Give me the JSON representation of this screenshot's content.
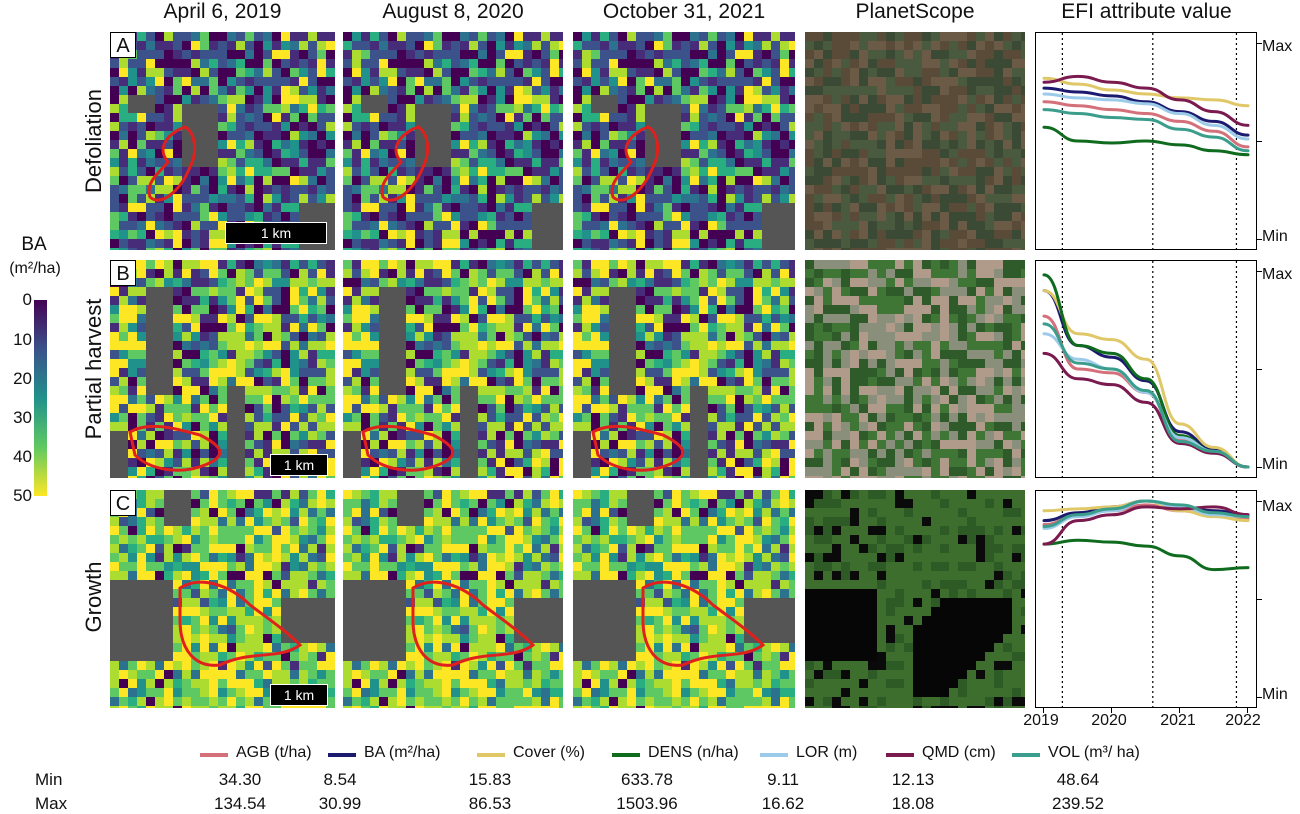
{
  "columns": [
    "April 6, 2019",
    "August 8, 2020",
    "October 31, 2021",
    "PlanetScope",
    "EFI attribute value"
  ],
  "rows": [
    {
      "letter": "A",
      "label": "Defoliation",
      "scale": "1 km"
    },
    {
      "letter": "B",
      "label": "Partial harvest",
      "scale": "1 km"
    },
    {
      "letter": "C",
      "label": "Growth",
      "scale": "1 km"
    }
  ],
  "colorbar": {
    "title": "BA",
    "unit": "(m²/ha)",
    "ticks": [
      "0",
      "10",
      "20",
      "30",
      "40",
      "50"
    ],
    "colors": [
      "#440154",
      "#3b528b",
      "#21918c",
      "#5ec962",
      "#fde725"
    ]
  },
  "chart_data": [
    {
      "type": "line",
      "panel": "A",
      "ylabels": [
        "Max",
        "Min"
      ],
      "x": [
        2019,
        2019.5,
        2020,
        2020.5,
        2021,
        2021.5,
        2022
      ],
      "vlines": [
        2019.27,
        2020.6,
        2021.83
      ],
      "xticks": [
        "2019",
        "2020",
        "2021",
        "2022"
      ],
      "ylim": [
        0,
        1
      ],
      "series": [
        {
          "name": "AGB",
          "color": "#d4707a",
          "values": [
            0.7,
            0.68,
            0.66,
            0.64,
            0.6,
            0.55,
            0.47
          ]
        },
        {
          "name": "BA",
          "color": "#1c1a6e",
          "values": [
            0.77,
            0.75,
            0.73,
            0.7,
            0.65,
            0.6,
            0.53
          ]
        },
        {
          "name": "Cover",
          "color": "#e0c869",
          "values": [
            0.82,
            0.79,
            0.76,
            0.74,
            0.72,
            0.71,
            0.68
          ]
        },
        {
          "name": "DENS",
          "color": "#0f6b1e",
          "values": [
            0.57,
            0.5,
            0.49,
            0.5,
            0.48,
            0.45,
            0.43
          ]
        },
        {
          "name": "LOR",
          "color": "#9ccbea",
          "values": [
            0.74,
            0.72,
            0.71,
            0.69,
            0.64,
            0.58,
            0.51
          ]
        },
        {
          "name": "QMD",
          "color": "#7a1a4e",
          "values": [
            0.8,
            0.83,
            0.8,
            0.77,
            0.71,
            0.65,
            0.58
          ]
        },
        {
          "name": "VOL",
          "color": "#3b9e8c",
          "values": [
            0.66,
            0.64,
            0.62,
            0.61,
            0.56,
            0.52,
            0.45
          ]
        }
      ]
    },
    {
      "type": "line",
      "panel": "B",
      "ylabels": [
        "Max",
        "Min"
      ],
      "x": [
        2019,
        2019.5,
        2020,
        2020.5,
        2021,
        2021.5,
        2022
      ],
      "vlines": [
        2019.27,
        2020.6,
        2021.83
      ],
      "xticks": [
        "2019",
        "2020",
        "2021",
        "2022"
      ],
      "ylim": [
        0,
        1
      ],
      "series": [
        {
          "name": "AGB",
          "color": "#d4707a",
          "values": [
            0.77,
            0.5,
            0.48,
            0.38,
            0.14,
            0.08,
            0.0
          ]
        },
        {
          "name": "BA",
          "color": "#1c1a6e",
          "values": [
            0.9,
            0.62,
            0.56,
            0.44,
            0.18,
            0.09,
            0.0
          ]
        },
        {
          "name": "Cover",
          "color": "#e0c869",
          "values": [
            0.9,
            0.68,
            0.65,
            0.55,
            0.22,
            0.1,
            0.0
          ]
        },
        {
          "name": "DENS",
          "color": "#0f6b1e",
          "values": [
            0.98,
            0.62,
            0.58,
            0.45,
            0.16,
            0.08,
            0.0
          ]
        },
        {
          "name": "LOR",
          "color": "#9ccbea",
          "values": [
            0.68,
            0.55,
            0.5,
            0.38,
            0.15,
            0.08,
            0.0
          ]
        },
        {
          "name": "QMD",
          "color": "#7a1a4e",
          "values": [
            0.58,
            0.45,
            0.42,
            0.33,
            0.12,
            0.07,
            0.0
          ]
        },
        {
          "name": "VOL",
          "color": "#3b9e8c",
          "values": [
            0.73,
            0.53,
            0.5,
            0.39,
            0.13,
            0.08,
            0.0
          ]
        }
      ]
    },
    {
      "type": "line",
      "panel": "C",
      "ylabels": [
        "Max",
        "Min"
      ],
      "x": [
        2019,
        2019.5,
        2020,
        2020.5,
        2021,
        2021.5,
        2022
      ],
      "vlines": [
        2019.27,
        2020.6,
        2021.83
      ],
      "xticks": [
        "2019",
        "2020",
        "2021",
        "2022"
      ],
      "ylim": [
        0,
        1
      ],
      "series": [
        {
          "name": "AGB",
          "color": "#d4707a",
          "values": [
            0.88,
            0.93,
            0.95,
            0.98,
            0.95,
            0.93,
            0.91
          ]
        },
        {
          "name": "BA",
          "color": "#1c1a6e",
          "values": [
            0.9,
            0.94,
            0.97,
            1.0,
            0.97,
            0.95,
            0.93
          ]
        },
        {
          "name": "Cover",
          "color": "#e0c869",
          "values": [
            0.95,
            0.96,
            0.97,
            1.0,
            0.95,
            0.92,
            0.9
          ]
        },
        {
          "name": "DENS",
          "color": "#0f6b1e",
          "values": [
            0.78,
            0.8,
            0.79,
            0.77,
            0.72,
            0.65,
            0.66
          ]
        },
        {
          "name": "LOR",
          "color": "#9ccbea",
          "values": [
            0.86,
            0.92,
            0.95,
            1.0,
            0.97,
            0.93,
            0.92
          ]
        },
        {
          "name": "QMD",
          "color": "#7a1a4e",
          "values": [
            0.78,
            0.9,
            0.93,
            0.97,
            0.96,
            0.97,
            0.93
          ]
        },
        {
          "name": "VOL",
          "color": "#3b9e8c",
          "values": [
            0.87,
            0.93,
            0.96,
            1.0,
            0.98,
            0.94,
            0.92
          ]
        }
      ]
    }
  ],
  "legend": [
    {
      "label": "AGB (t/ha)",
      "color": "#d4707a",
      "min": "34.30",
      "max": "134.54"
    },
    {
      "label": "BA (m²/ha)",
      "color": "#1c1a6e",
      "min": "8.54",
      "max": "30.99"
    },
    {
      "label": "Cover (%)",
      "color": "#e0c869",
      "min": "15.83",
      "max": "86.53"
    },
    {
      "label": "DENS (n/ha)",
      "color": "#0f6b1e",
      "min": "633.78",
      "max": "1503.96"
    },
    {
      "label": "LOR (m)",
      "color": "#9ccbea",
      "min": "9.11",
      "max": "16.62"
    },
    {
      "label": "QMD (cm)",
      "color": "#7a1a4e",
      "min": "12.13",
      "max": "18.08"
    },
    {
      "label": "VOL (m³/ ha)",
      "color": "#3b9e8c",
      "min": "48.64",
      "max": "239.52"
    }
  ],
  "stats_labels": {
    "min": "Min",
    "max": "Max"
  }
}
